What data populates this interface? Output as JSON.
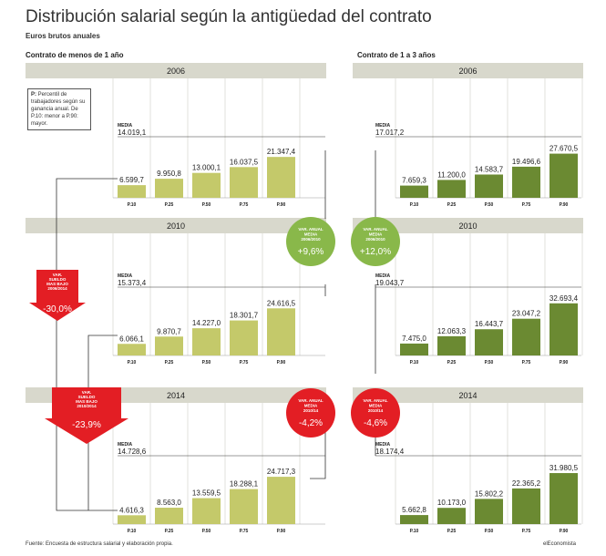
{
  "header": {
    "title": "Distribución salarial según la antigüedad del contrato",
    "subtitle": "Euros brutos anuales"
  },
  "sections": {
    "left": "Contrato de menos de 1 año",
    "right": "Contrato de 1 a 3 años"
  },
  "note": {
    "bold": "P:",
    "text": " Percentil de trabajadores según su ganancia anual. De P.10: menor a P.90: mayor."
  },
  "media_label": "MEDIA",
  "footer": "Fuente: Encuesta de estructura salarial y elaboración propia.",
  "brand": "elEconomista",
  "colors": {
    "left_bar": "#c4c96a",
    "right_bar": "#6b8a32",
    "year_band": "#d8d8cc",
    "green_badge": "#89b84a",
    "red_badge": "#e31e24"
  },
  "chart_data": [
    {
      "type": "bar",
      "panel": "left",
      "year": "2006",
      "categories": [
        "P.10",
        "P.25",
        "P.50",
        "P.75",
        "P.90"
      ],
      "values": [
        6599.7,
        9950.8,
        13000.1,
        16037.5,
        21347.4
      ],
      "labels": [
        "6.599,7",
        "9.950,8",
        "13.000,1",
        "16.037,5",
        "21.347,4"
      ],
      "media": "14.019,1"
    },
    {
      "type": "bar",
      "panel": "left",
      "year": "2010",
      "categories": [
        "P.10",
        "P.25",
        "P.50",
        "P.75",
        "P.90"
      ],
      "values": [
        6066.1,
        9870.7,
        14227.0,
        18301.7,
        24616.5
      ],
      "labels": [
        "6.066,1",
        "9.870,7",
        "14.227,0",
        "18.301,7",
        "24.616,5"
      ],
      "media": "15.373,4"
    },
    {
      "type": "bar",
      "panel": "left",
      "year": "2014",
      "categories": [
        "P.10",
        "P.25",
        "P.50",
        "P.75",
        "P.90"
      ],
      "values": [
        4616.3,
        8563.0,
        13559.5,
        18288.1,
        24717.3
      ],
      "labels": [
        "4.616,3",
        "8.563,0",
        "13.559,5",
        "18.288,1",
        "24.717,3"
      ],
      "media": "14.728,6"
    },
    {
      "type": "bar",
      "panel": "right",
      "year": "2006",
      "categories": [
        "P.10",
        "P.25",
        "P.50",
        "P.75",
        "P.90"
      ],
      "values": [
        7659.3,
        11200.0,
        14583.7,
        19496.6,
        27670.5
      ],
      "labels": [
        "7.659,3",
        "11.200,0",
        "14.583,7",
        "19.496,6",
        "27.670,5"
      ],
      "media": "17.017,2"
    },
    {
      "type": "bar",
      "panel": "right",
      "year": "2010",
      "categories": [
        "P.10",
        "P.25",
        "P.50",
        "P.75",
        "P.90"
      ],
      "values": [
        7475.0,
        12063.3,
        16443.7,
        23047.2,
        32693.4
      ],
      "labels": [
        "7.475,0",
        "12.063,3",
        "16.443,7",
        "23.047,2",
        "32.693,4"
      ],
      "media": "19.043,7"
    },
    {
      "type": "bar",
      "panel": "right",
      "year": "2014",
      "categories": [
        "P.10",
        "P.25",
        "P.50",
        "P.75",
        "P.90"
      ],
      "values": [
        5662.8,
        10173.0,
        15802.2,
        22365.2,
        31980.5
      ],
      "labels": [
        "5.662,8",
        "10.173,0",
        "15.802,2",
        "22.365,2",
        "31.980,5"
      ],
      "media": "18.174,4"
    }
  ],
  "badges": [
    {
      "id": "left-2006-2010",
      "lines": [
        "VAR. ANUAL",
        "MEDIA",
        "2006/2010"
      ],
      "value": "+9,6%",
      "color": "green"
    },
    {
      "id": "right-2006-2010",
      "lines": [
        "VAR. ANUAL",
        "MEDIA",
        "2006/2010"
      ],
      "value": "+12,0%",
      "color": "green"
    },
    {
      "id": "left-2010-2014",
      "lines": [
        "VAR. ANUAL",
        "MEDIA",
        "2010/14"
      ],
      "value": "-4,2%",
      "color": "red"
    },
    {
      "id": "right-2010-2014",
      "lines": [
        "VAR. ANUAL",
        "MEDIA",
        "2010/14"
      ],
      "value": "-4,6%",
      "color": "red"
    }
  ],
  "arrows": [
    {
      "id": "arrow-2006-2014",
      "lines": [
        "VAR.",
        "SUELDO",
        "MAS BAJO",
        "2006/2014"
      ],
      "value": "-30,0%"
    },
    {
      "id": "arrow-2010-2014",
      "lines": [
        "VAR.",
        "SUELDO",
        "MAS BAJO",
        "2010/2014"
      ],
      "value": "-23,9%"
    }
  ]
}
